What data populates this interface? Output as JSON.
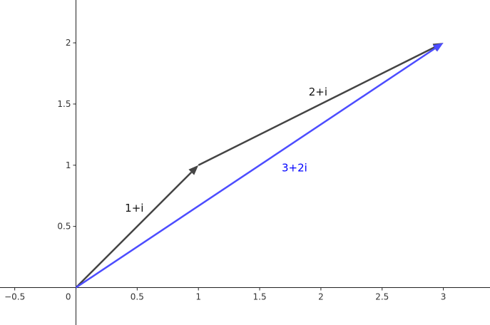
{
  "chart_data": {
    "type": "vector-diagram",
    "xlim": [
      -0.62,
      3.38
    ],
    "ylim": [
      -0.3,
      2.34
    ],
    "grid": false,
    "x_ticks": [
      {
        "value": -0.5,
        "label": "−0.5"
      },
      {
        "value": 0.5,
        "label": "0.5"
      },
      {
        "value": 1,
        "label": "1"
      },
      {
        "value": 1.5,
        "label": "1.5"
      },
      {
        "value": 2,
        "label": "2"
      },
      {
        "value": 2.5,
        "label": "2.5"
      },
      {
        "value": 3,
        "label": "3"
      }
    ],
    "y_ticks": [
      {
        "value": 0.5,
        "label": "0.5"
      },
      {
        "value": 1,
        "label": "1"
      },
      {
        "value": 1.5,
        "label": "1.5"
      },
      {
        "value": 2,
        "label": "2"
      }
    ],
    "origin_label": "0",
    "vectors": [
      {
        "label": "1+i",
        "from": [
          0,
          0
        ],
        "to": [
          1,
          1
        ],
        "color": "#444444"
      },
      {
        "label": "2+i",
        "from": [
          1,
          1
        ],
        "to": [
          3,
          2
        ],
        "color": "#444444"
      },
      {
        "label": "3+2i",
        "from": [
          0,
          0
        ],
        "to": [
          3,
          2
        ],
        "color": "#4c4cff"
      }
    ]
  }
}
